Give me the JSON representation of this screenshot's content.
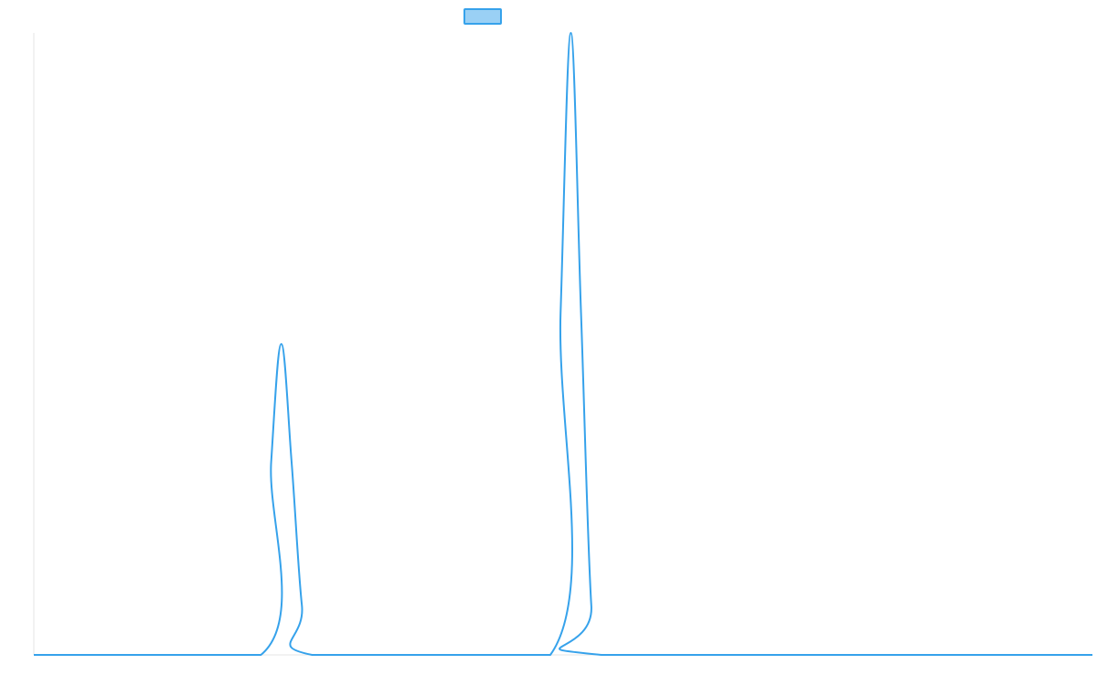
{
  "chart_data": {
    "type": "line",
    "title": "",
    "xlabel": "",
    "ylabel": "",
    "x_range": [
      0,
      1
    ],
    "ylim": [
      0,
      1
    ],
    "grid": false,
    "legend": {
      "placement": "top-center",
      "entries": [
        {
          "label": ""
        }
      ]
    },
    "series": [
      {
        "color": "#36a2eb",
        "fill_color": "#9ad0f5",
        "x": [
          0,
          0.2145,
          0.2242,
          0.2338,
          0.2435,
          0.2532,
          0.2628,
          0.4879,
          0.4976,
          0.5073,
          0.5169,
          0.5266,
          0.5363,
          1
        ],
        "y": [
          0,
          0,
          0.31,
          0.5,
          0.31,
          0.08,
          0,
          0,
          0.55,
          1,
          0.55,
          0.08,
          0,
          0
        ]
      }
    ]
  }
}
